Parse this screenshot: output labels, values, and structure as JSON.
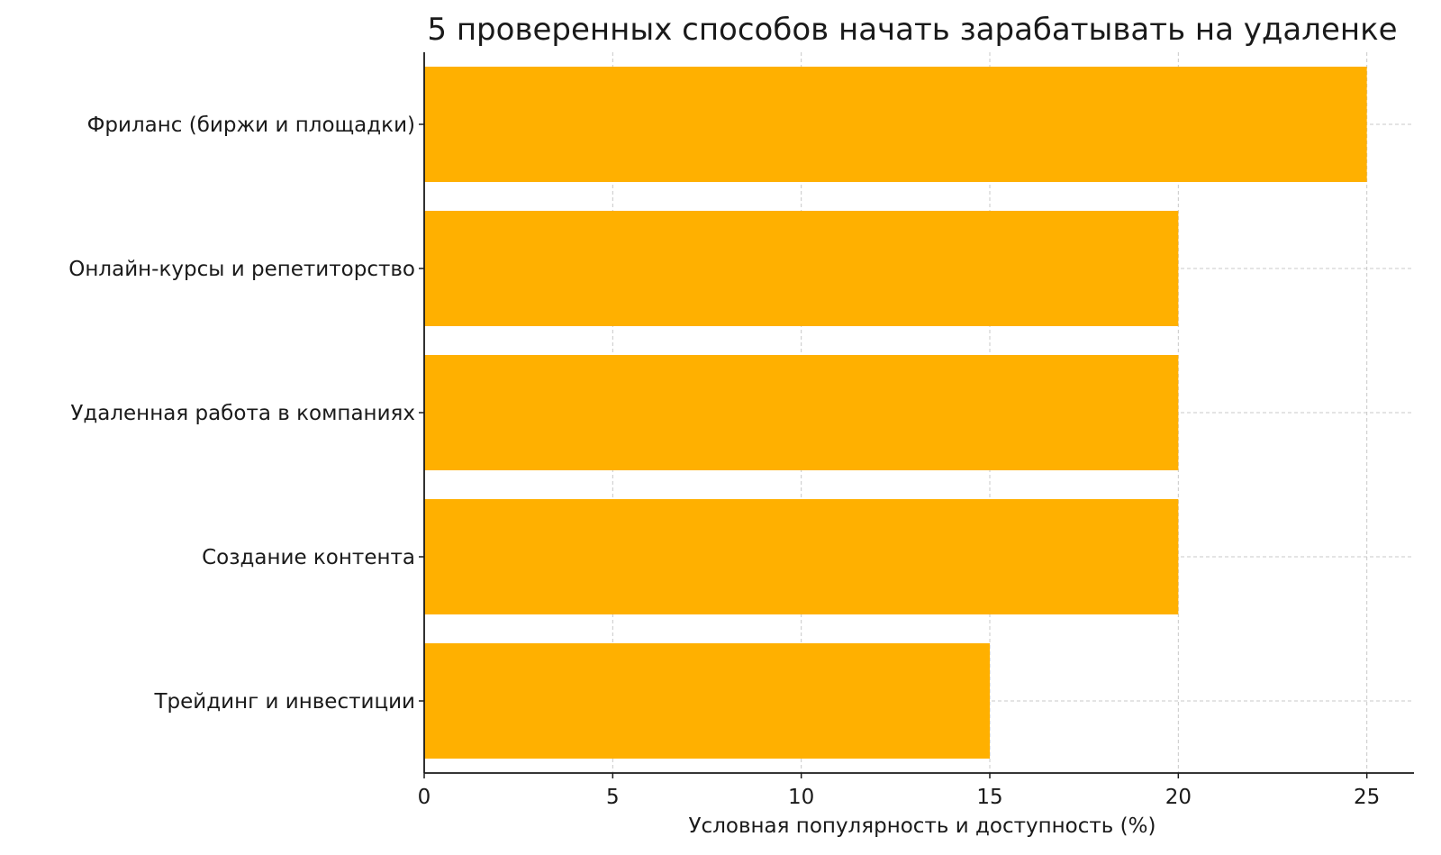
{
  "chart_data": {
    "type": "bar",
    "orientation": "horizontal",
    "title": "5 проверенных способов начать зарабатывать на удаленке",
    "xlabel": "Условная популярность и доступность (%)",
    "ylabel": "",
    "categories": [
      "Фриланс (биржи и площадки)",
      "Онлайн-курсы и репетиторство",
      "Удаленная работа в компаниях",
      "Создание контента",
      "Трейдинг и инвестиции"
    ],
    "values": [
      25,
      20,
      20,
      20,
      15
    ],
    "xlim": [
      0,
      26.25
    ],
    "xticks": [
      0,
      5,
      10,
      15,
      20,
      25
    ],
    "grid": true,
    "bar_color": "#FFB000",
    "grid_color": "#c8c8c8",
    "axis_color": "#1a1a1a"
  }
}
